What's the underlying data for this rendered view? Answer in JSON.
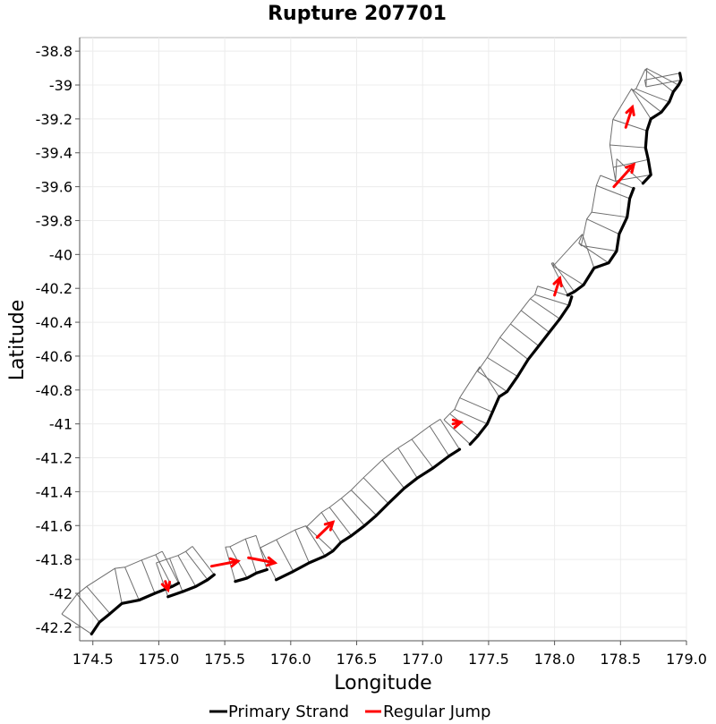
{
  "chart_data": {
    "type": "line",
    "title": "Rupture 207701",
    "xlabel": "Longitude",
    "ylabel": "Latitude",
    "xlim": [
      174.4,
      179.0
    ],
    "ylim": [
      -42.28,
      -38.72
    ],
    "x_ticks": [
      "174.5",
      "175.0",
      "175.5",
      "176.0",
      "176.5",
      "177.0",
      "177.5",
      "178.0",
      "178.5",
      "179.0"
    ],
    "y_ticks": [
      "-38.8",
      "-39",
      "-39.2",
      "-39.4",
      "-39.6",
      "-39.8",
      "-40",
      "-40.2",
      "-40.4",
      "-40.6",
      "-40.8",
      "-41",
      "-41.2",
      "-41.4",
      "-41.6",
      "-41.8",
      "-42",
      "-42.2"
    ],
    "grid": true,
    "legend_position": "bottom",
    "colors": {
      "primary_strand": "#000000",
      "regular_jump": "#ff0000",
      "patch_outline": "#6e6e6e"
    },
    "series": [
      {
        "name": "Primary Strand",
        "segments": [
          [
            [
              174.49,
              -42.24
            ],
            [
              174.55,
              -42.17
            ],
            [
              174.63,
              -42.12
            ],
            [
              174.72,
              -42.06
            ],
            [
              174.85,
              -42.04
            ],
            [
              174.97,
              -42.0
            ],
            [
              175.1,
              -41.96
            ],
            [
              175.15,
              -41.94
            ]
          ],
          [
            [
              175.07,
              -42.02
            ],
            [
              175.18,
              -41.99
            ],
            [
              175.28,
              -41.96
            ],
            [
              175.37,
              -41.92
            ],
            [
              175.42,
              -41.89
            ]
          ],
          [
            [
              175.58,
              -41.93
            ],
            [
              175.67,
              -41.91
            ],
            [
              175.74,
              -41.88
            ],
            [
              175.82,
              -41.86
            ]
          ],
          [
            [
              175.89,
              -41.92
            ],
            [
              176.02,
              -41.87
            ],
            [
              176.14,
              -41.82
            ],
            [
              176.26,
              -41.78
            ],
            [
              176.32,
              -41.75
            ],
            [
              176.38,
              -41.7
            ],
            [
              176.46,
              -41.66
            ],
            [
              176.56,
              -41.6
            ],
            [
              176.65,
              -41.54
            ],
            [
              176.74,
              -41.47
            ],
            [
              176.86,
              -41.38
            ],
            [
              176.96,
              -41.32
            ],
            [
              177.08,
              -41.26
            ],
            [
              177.2,
              -41.19
            ],
            [
              177.28,
              -41.15
            ]
          ],
          [
            [
              177.36,
              -41.12
            ],
            [
              177.42,
              -41.07
            ],
            [
              177.49,
              -41.0
            ],
            [
              177.53,
              -40.93
            ],
            [
              177.58,
              -40.84
            ],
            [
              177.64,
              -40.81
            ],
            [
              177.72,
              -40.72
            ],
            [
              177.8,
              -40.62
            ],
            [
              177.88,
              -40.54
            ],
            [
              177.96,
              -40.46
            ],
            [
              178.04,
              -40.38
            ],
            [
              178.11,
              -40.3
            ],
            [
              178.13,
              -40.25
            ]
          ],
          [
            [
              178.1,
              -40.24
            ],
            [
              178.15,
              -40.22
            ],
            [
              178.22,
              -40.18
            ],
            [
              178.3,
              -40.08
            ],
            [
              178.41,
              -40.05
            ],
            [
              178.47,
              -39.98
            ],
            [
              178.49,
              -39.88
            ],
            [
              178.55,
              -39.78
            ],
            [
              178.57,
              -39.67
            ],
            [
              178.6,
              -39.61
            ]
          ],
          [
            [
              178.67,
              -39.58
            ],
            [
              178.73,
              -39.53
            ],
            [
              178.71,
              -39.44
            ],
            [
              178.69,
              -39.37
            ],
            [
              178.7,
              -39.27
            ],
            [
              178.73,
              -39.2
            ],
            [
              178.81,
              -39.16
            ],
            [
              178.87,
              -39.1
            ],
            [
              178.9,
              -39.04
            ],
            [
              178.94,
              -39.0
            ],
            [
              178.96,
              -38.97
            ],
            [
              178.95,
              -38.93
            ]
          ]
        ]
      },
      {
        "name": "Regular Jump",
        "arrows": [
          [
            [
              175.05,
              -41.93
            ],
            [
              175.07,
              -41.98
            ]
          ],
          [
            [
              175.4,
              -41.84
            ],
            [
              175.6,
              -41.81
            ]
          ],
          [
            [
              175.68,
              -41.79
            ],
            [
              175.88,
              -41.82
            ]
          ],
          [
            [
              176.2,
              -41.67
            ],
            [
              176.32,
              -41.58
            ]
          ],
          [
            [
              177.23,
              -41.0
            ],
            [
              177.29,
              -40.99
            ]
          ],
          [
            [
              178.0,
              -40.24
            ],
            [
              178.04,
              -40.14
            ]
          ],
          [
            [
              178.54,
              -39.25
            ],
            [
              178.59,
              -39.13
            ]
          ],
          [
            [
              178.45,
              -39.6
            ],
            [
              178.6,
              -39.47
            ]
          ]
        ]
      }
    ],
    "legend": [
      "Primary Strand",
      "Regular Jump"
    ]
  }
}
